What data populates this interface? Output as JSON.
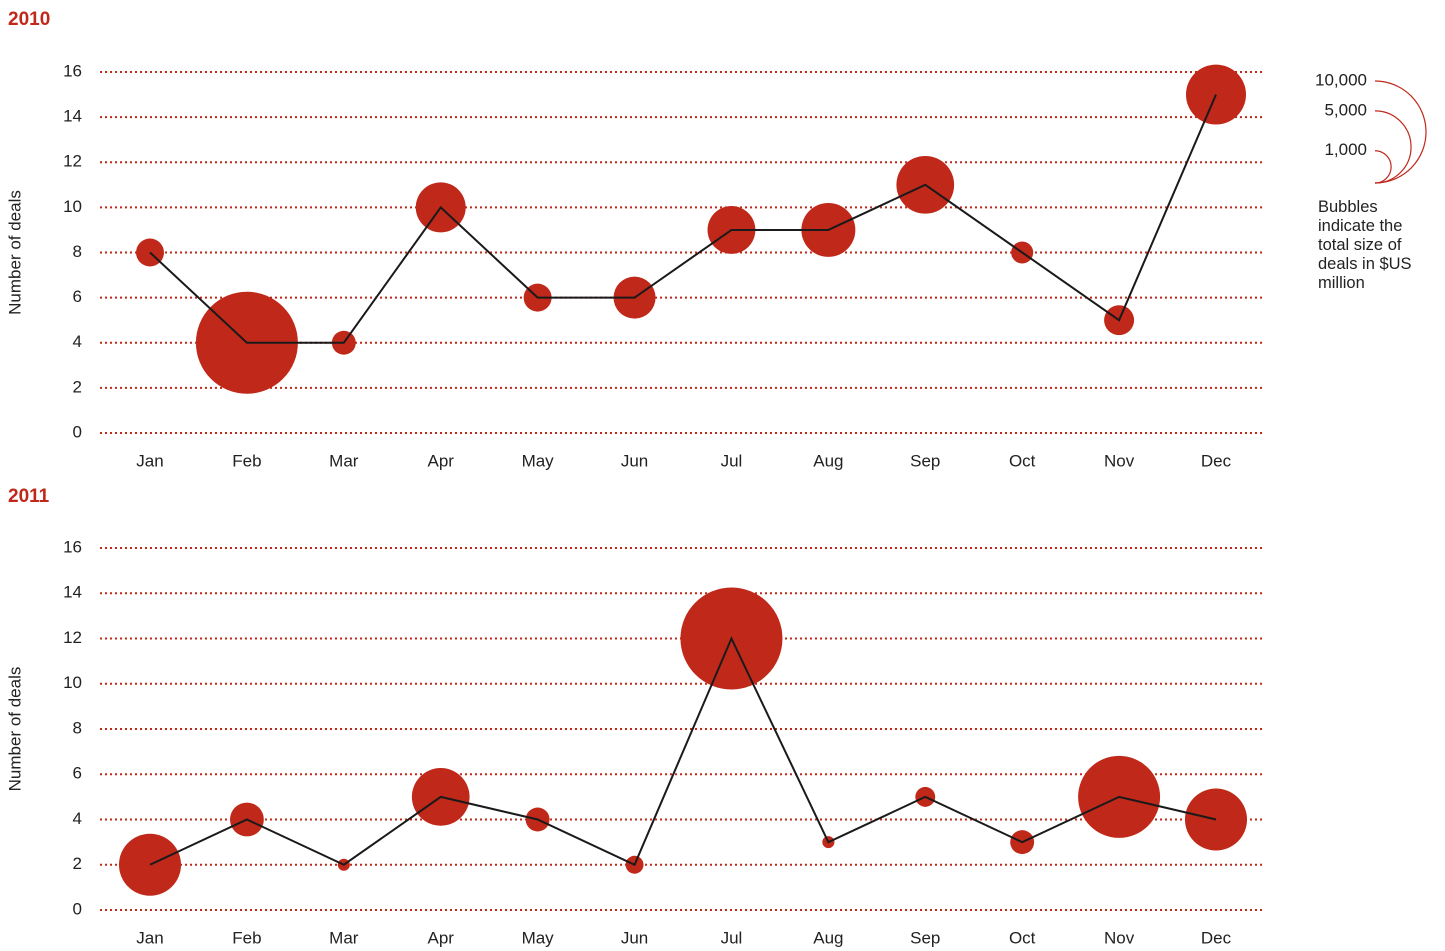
{
  "chart_data": [
    {
      "type": "bubble",
      "title": "2010",
      "y_label": "Number of deals",
      "categories": [
        "Jan",
        "Feb",
        "Mar",
        "Apr",
        "May",
        "Jun",
        "Jul",
        "Aug",
        "Sep",
        "Oct",
        "Nov",
        "Dec"
      ],
      "values": [
        8,
        4,
        4,
        10,
        6,
        6,
        9,
        9,
        11,
        8,
        5,
        15
      ],
      "sizes": [
        750,
        10000,
        550,
        2400,
        750,
        1700,
        2200,
        2800,
        3200,
        465,
        865,
        3460
      ],
      "ylim": [
        0,
        16
      ],
      "yticks": [
        0,
        2,
        4,
        6,
        8,
        10,
        12,
        14,
        16
      ],
      "grid": true,
      "color": "#c0281a",
      "line_color": "#1a1a1a"
    },
    {
      "type": "bubble",
      "title": "2011",
      "y_label": "Number of deals",
      "categories": [
        "Jan",
        "Feb",
        "Mar",
        "Apr",
        "May",
        "Jun",
        "Jul",
        "Aug",
        "Sep",
        "Oct",
        "Nov",
        "Dec"
      ],
      "values": [
        2,
        4,
        2,
        5,
        4,
        2,
        12,
        3,
        5,
        3,
        5,
        4
      ],
      "sizes": [
        3700,
        1100,
        140,
        3200,
        550,
        310,
        10000,
        140,
        380,
        550,
        6460,
        3700
      ],
      "ylim": [
        0,
        16
      ],
      "yticks": [
        0,
        2,
        4,
        6,
        8,
        10,
        12,
        14,
        16
      ],
      "grid": true,
      "color": "#c0281a",
      "line_color": "#1a1a1a"
    }
  ],
  "size_legend": {
    "ticks": [
      {
        "value": 10000,
        "label": "10,000"
      },
      {
        "value": 5000,
        "label": "5,000"
      },
      {
        "value": 1000,
        "label": "1,000"
      }
    ],
    "note": "Bubbles indicate the total size of deals in $US million"
  }
}
